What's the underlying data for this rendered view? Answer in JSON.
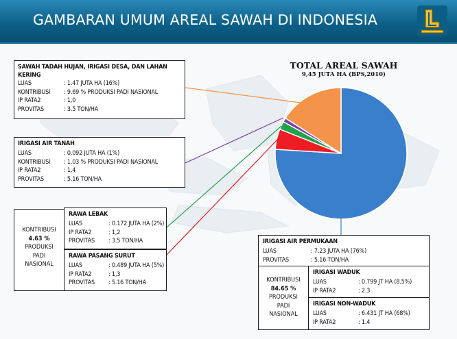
{
  "header": {
    "title": "GAMBARAN UMUM AREAL SAWAH DI INDONESIA",
    "logo_icon": "pu-logo-icon"
  },
  "chart_data": {
    "type": "pie",
    "title": "TOTAL AREAL SAWAH",
    "subtitle": "9,45 JUTA HA (BPS,2010)",
    "slices": [
      {
        "label": "IRIGASI AIR PERMUKAAN",
        "value": 76,
        "color": "#3a7fcc"
      },
      {
        "label": "RAWA PASANG SURUT",
        "value": 5,
        "color": "#ee1c24"
      },
      {
        "label": "RAWA LEBAK",
        "value": 2,
        "color": "#22a24a"
      },
      {
        "label": "IRIGASI AIR TANAH",
        "value": 1,
        "color": "#7b3fa8"
      },
      {
        "label": "SAWAH TADAH HUJAN, IRIGASI DESA, DAN LAHAN KERING",
        "value": 16,
        "color": "#f4934a"
      }
    ]
  },
  "boxes": {
    "tadah": {
      "title": "SAWAH TADAH HUJAN, IRIGASI DESA, DAN LAHAN KERING",
      "rows": [
        {
          "label": "LUAS",
          "value": ": 1.47 JUTA HA (16%)"
        },
        {
          "label": "KONTRIBUSI",
          "value": ": 9.69 % PRODUKSI PADI NASIONAL"
        },
        {
          "label": "IP RATA2",
          "value": ": 1,0"
        },
        {
          "label": "PROVITAS",
          "value": ": 3.5 TON/HA"
        }
      ]
    },
    "tanah": {
      "title": "IRIGASI AIR TANAH",
      "rows": [
        {
          "label": "LUAS",
          "value": ": 0.092 JUTA HA (1%)"
        },
        {
          "label": "KONTRIBUSI",
          "value": ": 1.03 % PRODUKSI PADI NASIONAL"
        },
        {
          "label": "IP RATA2",
          "value": ": 1,4"
        },
        {
          "label": "PROVITAS",
          "value": ": 5.16 TON/HA"
        }
      ]
    },
    "rawa_contrib": {
      "line1": "KONTRIBUSI",
      "pct": "4.63 %",
      "line3": "PRODUKSI",
      "line4": "PADI",
      "line5": "NASIONAL"
    },
    "lebak": {
      "title": "RAWA LEBAK",
      "rows": [
        {
          "label": "LUAS",
          "value": ": 0.172 JUTA HA (2%)"
        },
        {
          "label": "IP RATA2",
          "value": ": 1,2"
        },
        {
          "label": "PROVITAS",
          "value": ": 3.5 TON/HA"
        }
      ]
    },
    "surut": {
      "title": "RAWA PASANG SURUT",
      "rows": [
        {
          "label": "LUAS",
          "value": ": 0.489 JUTA HA (5%)"
        },
        {
          "label": "IP RATA2",
          "value": ": 1,3"
        },
        {
          "label": "PROVITAS",
          "value": ": 5.16 TON/HA"
        }
      ]
    },
    "permukaan": {
      "title": "IRIGASI AIR PERMUKAAN",
      "rows": [
        {
          "label": "LUAS",
          "value": ": 7.23 JUTA HA (76%)"
        },
        {
          "label": "PROVITAS",
          "value": ": 5.16 TON/HA"
        }
      ]
    },
    "irigasi_contrib": {
      "line1": "KONTRIBUSI",
      "pct": "84.65 %",
      "line3": "PRODUKSI",
      "line4": "PADI",
      "line5": "NASIONAL"
    },
    "waduk": {
      "title": "IRIGASI WADUK",
      "rows": [
        {
          "label": "LUAS",
          "value": ": 0.799 JT HA (8.5%)"
        },
        {
          "label": "IP RATA2",
          "value": ": 2.3"
        }
      ]
    },
    "nonwaduk": {
      "title": "IRIGASI NON-WADUK",
      "rows": [
        {
          "label": "LUAS",
          "value": ": 6.431 JT HA (68%)"
        },
        {
          "label": "IP RATA2",
          "value": ": 1.4"
        }
      ]
    }
  }
}
